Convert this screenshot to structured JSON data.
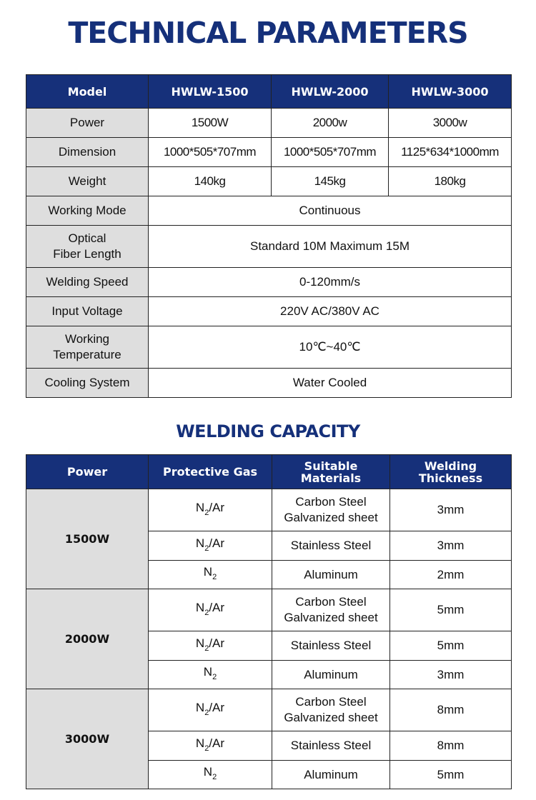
{
  "title": "TECHNICAL PARAMETERS",
  "params": {
    "headers": [
      "Model",
      "HWLW-1500",
      "HWLW-2000",
      "HWLW-3000"
    ],
    "rows": [
      {
        "label": "Power",
        "values": [
          "1500W",
          "2000w",
          "3000w"
        ]
      },
      {
        "label": "Dimension",
        "values": [
          "1000*505*707mm",
          "1000*505*707mm",
          "1125*634*1000mm"
        ]
      },
      {
        "label": "Weight",
        "values": [
          "140kg",
          "145kg",
          "180kg"
        ]
      },
      {
        "label": "Working Mode",
        "values": [
          "Continuous"
        ]
      },
      {
        "label": "Optical\nFiber Length",
        "values": [
          "Standard 10M Maximum 15M"
        ]
      },
      {
        "label": "Welding Speed",
        "values": [
          "0-120mm/s"
        ]
      },
      {
        "label": "Input Voltage",
        "values": [
          "220V AC/380V AC"
        ]
      },
      {
        "label": "Working\nTemperature",
        "values": [
          "10℃~40℃"
        ]
      },
      {
        "label": "Cooling System",
        "values": [
          "Water Cooled"
        ]
      }
    ]
  },
  "capacity_title": "WELDING CAPACITY",
  "capacity": {
    "headers": [
      "Power",
      "Protective Gas",
      "Suitable\nMaterials",
      "Welding\nThickness"
    ],
    "groups": [
      {
        "power": "1500W",
        "rows": [
          {
            "gas": {
              "base": "N",
              "sub": "2",
              "rest": "/Ar"
            },
            "material": "Carbon Steel\nGalvanized sheet",
            "thickness": "3mm"
          },
          {
            "gas": {
              "base": "N",
              "sub": "2",
              "rest": "/Ar"
            },
            "material": "Stainless Steel",
            "thickness": "3mm"
          },
          {
            "gas": {
              "base": "N",
              "sub": "2",
              "rest": ""
            },
            "material": "Aluminum",
            "thickness": "2mm"
          }
        ]
      },
      {
        "power": "2000W",
        "rows": [
          {
            "gas": {
              "base": "N",
              "sub": "2",
              "rest": "/Ar"
            },
            "material": "Carbon Steel\nGalvanized sheet",
            "thickness": "5mm"
          },
          {
            "gas": {
              "base": "N",
              "sub": "2",
              "rest": "/Ar"
            },
            "material": "Stainless Steel",
            "thickness": "5mm"
          },
          {
            "gas": {
              "base": "N",
              "sub": "2",
              "rest": ""
            },
            "material": "Aluminum",
            "thickness": "3mm"
          }
        ]
      },
      {
        "power": "3000W",
        "rows": [
          {
            "gas": {
              "base": "N",
              "sub": "2",
              "rest": "/Ar"
            },
            "material": "Carbon Steel\nGalvanized sheet",
            "thickness": "8mm"
          },
          {
            "gas": {
              "base": "N",
              "sub": "2",
              "rest": "/Ar"
            },
            "material": "Stainless Steel",
            "thickness": "8mm"
          },
          {
            "gas": {
              "base": "N",
              "sub": "2",
              "rest": ""
            },
            "material": "Aluminum",
            "thickness": "5mm"
          }
        ]
      }
    ]
  },
  "colors": {
    "header": "#16307a",
    "label_cell": "#dedede"
  }
}
